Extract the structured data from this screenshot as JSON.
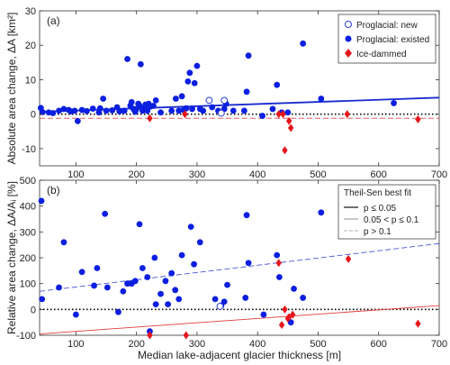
{
  "colors": {
    "existed": "#0a1fe0",
    "ice": "#e4161b",
    "new_edge": "#2a3fd8",
    "legend_border": "#444444"
  },
  "chart_data": [
    {
      "type": "scatter",
      "panel_label": "(a)",
      "xlabel": "",
      "ylabel": "Absolute area change, ΔA [km²]",
      "xlim": [
        40,
        700
      ],
      "ylim": [
        -15,
        30
      ],
      "xticks": [
        "100",
        "200",
        "300",
        "400",
        "500",
        "600",
        "700"
      ],
      "yticks": [
        "-10",
        "0",
        "10",
        "20",
        "30"
      ],
      "legend": {
        "placement": "top-right",
        "entries": [
          "Proglacial: new",
          "Proglacial: existed",
          "Ice-dammed"
        ]
      },
      "series": [
        {
          "name": "Proglacial: existed",
          "points": [
            [
              42,
              1.8
            ],
            [
              45,
              0.6
            ],
            [
              55,
              0.5
            ],
            [
              62,
              0.3
            ],
            [
              72,
              1.0
            ],
            [
              80,
              1.5
            ],
            [
              88,
              1.2
            ],
            [
              92,
              0.8
            ],
            [
              98,
              1.0
            ],
            [
              103,
              -2.0
            ],
            [
              110,
              1.2
            ],
            [
              118,
              0.9
            ],
            [
              128,
              1.6
            ],
            [
              138,
              0.5
            ],
            [
              140,
              1.7
            ],
            [
              145,
              4.5
            ],
            [
              150,
              1.0
            ],
            [
              160,
              1.1
            ],
            [
              168,
              2.0
            ],
            [
              172,
              0.8
            ],
            [
              180,
              1.0
            ],
            [
              185,
              16.0
            ],
            [
              190,
              2.5
            ],
            [
              192,
              3.5
            ],
            [
              195,
              1.5
            ],
            [
              198,
              0.7
            ],
            [
              200,
              1.5
            ],
            [
              203,
              3.0
            ],
            [
              205,
              2.5
            ],
            [
              207,
              14.5
            ],
            [
              210,
              1.0
            ],
            [
              212,
              1.8
            ],
            [
              215,
              2.8
            ],
            [
              218,
              1.0
            ],
            [
              220,
              3.0
            ],
            [
              223,
              2.2
            ],
            [
              228,
              2.4
            ],
            [
              232,
              4.0
            ],
            [
              240,
              0.5
            ],
            [
              258,
              1.0
            ],
            [
              265,
              4.5
            ],
            [
              270,
              1.0
            ],
            [
              275,
              5.2
            ],
            [
              278,
              1.2
            ],
            [
              282,
              1.7
            ],
            [
              285,
              9.5
            ],
            [
              288,
              12.0
            ],
            [
              292,
              1.5
            ],
            [
              296,
              9.0
            ],
            [
              300,
              14.0
            ],
            [
              305,
              1.5
            ],
            [
              310,
              1.0
            ],
            [
              325,
              2.0
            ],
            [
              335,
              1.0
            ],
            [
              345,
              1.5
            ],
            [
              348,
              3.0
            ],
            [
              360,
              1.0
            ],
            [
              378,
              1.0
            ],
            [
              382,
              6.5
            ],
            [
              385,
              17.0
            ],
            [
              408,
              -0.5
            ],
            [
              425,
              1.5
            ],
            [
              432,
              8.5
            ],
            [
              440,
              0.5
            ],
            [
              450,
              0.5
            ],
            [
              475,
              20.5
            ],
            [
              505,
              4.5
            ],
            [
              625,
              3.2
            ]
          ]
        },
        {
          "name": "Proglacial: new",
          "points": [
            [
              320,
              4.0
            ],
            [
              345,
              4.0
            ],
            [
              340,
              0.3
            ]
          ]
        },
        {
          "name": "Ice-dammed",
          "points": [
            [
              222,
              -1.2
            ],
            [
              280,
              0.0
            ],
            [
              435,
              0.0
            ],
            [
              442,
              0.0
            ],
            [
              445,
              -10.5
            ],
            [
              452,
              -2.0
            ],
            [
              455,
              -4.0
            ],
            [
              548,
              0.0
            ],
            [
              665,
              -1.5
            ]
          ]
        }
      ],
      "fits": [
        {
          "style": "solid",
          "color": "blue",
          "from": [
            40,
            0.7
          ],
          "to": [
            700,
            4.8
          ]
        },
        {
          "style": "dashed",
          "color": "red",
          "from": [
            40,
            -1.2
          ],
          "to": [
            700,
            -1.2
          ]
        }
      ],
      "zero_line": 0
    },
    {
      "type": "scatter",
      "panel_label": "(b)",
      "xlabel": "Median lake-adjacent glacier thickness [m]",
      "ylabel": "Relative area change, ΔA/Aᵢ [%]",
      "xlim": [
        40,
        700
      ],
      "ylim": [
        -100,
        500
      ],
      "xticks": [
        "100",
        "200",
        "300",
        "400",
        "500",
        "600",
        "700"
      ],
      "yticks": [
        "-100",
        "0",
        "100",
        "200",
        "300",
        "400",
        "500"
      ],
      "legend": {
        "placement": "top-right",
        "title": "Theil-Sen best fit",
        "entries": [
          "p ≤ 0.05",
          "0.05 < p ≤ 0.1",
          "p > 0.1"
        ]
      },
      "series": [
        {
          "name": "Proglacial: existed",
          "points": [
            [
              43,
              420
            ],
            [
              44,
              40
            ],
            [
              72,
              85
            ],
            [
              80,
              260
            ],
            [
              100,
              -20
            ],
            [
              110,
              145
            ],
            [
              130,
              92
            ],
            [
              135,
              160
            ],
            [
              148,
              370
            ],
            [
              152,
              85
            ],
            [
              170,
              -10
            ],
            [
              178,
              70
            ],
            [
              185,
              100
            ],
            [
              192,
              100
            ],
            [
              198,
              110
            ],
            [
              205,
              330
            ],
            [
              210,
              160
            ],
            [
              218,
              125
            ],
            [
              222,
              -85
            ],
            [
              230,
              200
            ],
            [
              232,
              20
            ],
            [
              240,
              60
            ],
            [
              248,
              110
            ],
            [
              252,
              20
            ],
            [
              258,
              140
            ],
            [
              264,
              75
            ],
            [
              270,
              40
            ],
            [
              275,
              210
            ],
            [
              290,
              320
            ],
            [
              295,
              175
            ],
            [
              305,
              260
            ],
            [
              330,
              40
            ],
            [
              340,
              15
            ],
            [
              345,
              30
            ],
            [
              350,
              95
            ],
            [
              380,
              45
            ],
            [
              382,
              365
            ],
            [
              385,
              180
            ],
            [
              410,
              -20
            ],
            [
              432,
              210
            ],
            [
              436,
              125
            ],
            [
              455,
              -50
            ],
            [
              460,
              80
            ],
            [
              475,
              45
            ],
            [
              505,
              375
            ]
          ]
        },
        {
          "name": "Proglacial: new",
          "points": [
            [
              338,
              12
            ]
          ]
        },
        {
          "name": "Ice-dammed",
          "points": [
            [
              222,
              -100
            ],
            [
              282,
              -100
            ],
            [
              440,
              -60
            ],
            [
              435,
              180
            ],
            [
              445,
              0
            ],
            [
              450,
              -35
            ],
            [
              452,
              -30
            ],
            [
              458,
              -20
            ],
            [
              550,
              195
            ],
            [
              665,
              -55
            ]
          ]
        }
      ],
      "fits": [
        {
          "style": "solid",
          "color": "red",
          "from": [
            40,
            -95
          ],
          "to": [
            700,
            15
          ]
        },
        {
          "style": "dashed",
          "color": "blue",
          "from": [
            40,
            70
          ],
          "to": [
            700,
            255
          ]
        }
      ],
      "zero_line": 0
    }
  ]
}
